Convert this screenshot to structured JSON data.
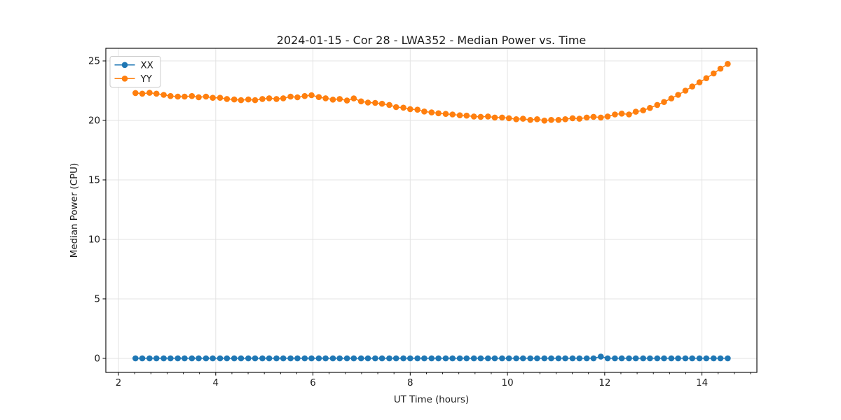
{
  "figure": {
    "background": "#ffffff"
  },
  "chart_data": {
    "type": "line",
    "title": "2024-01-15 - Cor 28 - LWA352 - Median Power vs. Time",
    "xlabel": "UT Time (hours)",
    "ylabel": "Median Power (CPU)",
    "xlim": [
      1.74,
      15.13
    ],
    "ylim": [
      -1.18,
      26.06
    ],
    "xticks": [
      2,
      4,
      6,
      8,
      10,
      12,
      14
    ],
    "yticks": [
      0,
      5,
      10,
      15,
      20,
      25
    ],
    "x_minor_step": 0.33333,
    "grid": true,
    "grid_color": "#e3e3e3",
    "spine_color": "#000000",
    "text_color": "#1a1a1a",
    "legend_position": "upper-left",
    "x": [
      2.35,
      2.49,
      2.64,
      2.78,
      2.93,
      3.07,
      3.22,
      3.36,
      3.51,
      3.65,
      3.8,
      3.94,
      4.09,
      4.23,
      4.38,
      4.52,
      4.67,
      4.81,
      4.96,
      5.1,
      5.25,
      5.39,
      5.54,
      5.68,
      5.83,
      5.97,
      6.12,
      6.26,
      6.41,
      6.55,
      6.7,
      6.84,
      6.99,
      7.13,
      7.28,
      7.42,
      7.57,
      7.71,
      7.86,
      8.0,
      8.15,
      8.29,
      8.44,
      8.58,
      8.73,
      8.87,
      9.02,
      9.16,
      9.31,
      9.45,
      9.6,
      9.74,
      9.89,
      10.03,
      10.18,
      10.32,
      10.47,
      10.61,
      10.76,
      10.9,
      11.05,
      11.19,
      11.34,
      11.48,
      11.63,
      11.77,
      11.92,
      12.06,
      12.21,
      12.35,
      12.5,
      12.64,
      12.79,
      12.93,
      13.08,
      13.22,
      13.37,
      13.51,
      13.66,
      13.8,
      13.95,
      14.09,
      14.24,
      14.38,
      14.53
    ],
    "series": [
      {
        "name": "XX",
        "color": "#1f77b4",
        "values": [
          0,
          0,
          0,
          0,
          0,
          0,
          0,
          0,
          0,
          0,
          0,
          0,
          0,
          0,
          0,
          0,
          0,
          0,
          0,
          0,
          0,
          0,
          0,
          0,
          0,
          0,
          0,
          0,
          0,
          0,
          0,
          0,
          0,
          0,
          0,
          0,
          0,
          0,
          0,
          0,
          0,
          0,
          0,
          0,
          0,
          0,
          0,
          0,
          0,
          0,
          0,
          0,
          0,
          0,
          0,
          0,
          0,
          0,
          0,
          0,
          0,
          0,
          0,
          0,
          0,
          0,
          0.15,
          0,
          0,
          0,
          0,
          0,
          0,
          0,
          0,
          0,
          0,
          0,
          0,
          0,
          0,
          0,
          0,
          0,
          0
        ]
      },
      {
        "name": "YY",
        "color": "#ff7f0e",
        "values": [
          22.3,
          22.25,
          22.32,
          22.25,
          22.15,
          22.05,
          22.0,
          22.0,
          22.05,
          21.95,
          22.0,
          21.9,
          21.9,
          21.8,
          21.76,
          21.7,
          21.76,
          21.7,
          21.8,
          21.86,
          21.8,
          21.86,
          22.0,
          21.94,
          22.05,
          22.12,
          21.96,
          21.86,
          21.75,
          21.8,
          21.67,
          21.85,
          21.6,
          21.5,
          21.47,
          21.4,
          21.3,
          21.12,
          21.07,
          20.95,
          20.9,
          20.75,
          20.67,
          20.6,
          20.55,
          20.5,
          20.43,
          20.4,
          20.33,
          20.3,
          20.33,
          20.24,
          20.24,
          20.18,
          20.1,
          20.14,
          20.04,
          20.1,
          19.98,
          20.04,
          20.04,
          20.1,
          20.18,
          20.14,
          20.24,
          20.3,
          20.24,
          20.33,
          20.5,
          20.57,
          20.5,
          20.73,
          20.85,
          21.05,
          21.3,
          21.55,
          21.85,
          22.15,
          22.5,
          22.85,
          23.2,
          23.55,
          23.95,
          24.35,
          24.75
        ]
      }
    ],
    "legend": [
      "XX",
      "YY"
    ]
  }
}
